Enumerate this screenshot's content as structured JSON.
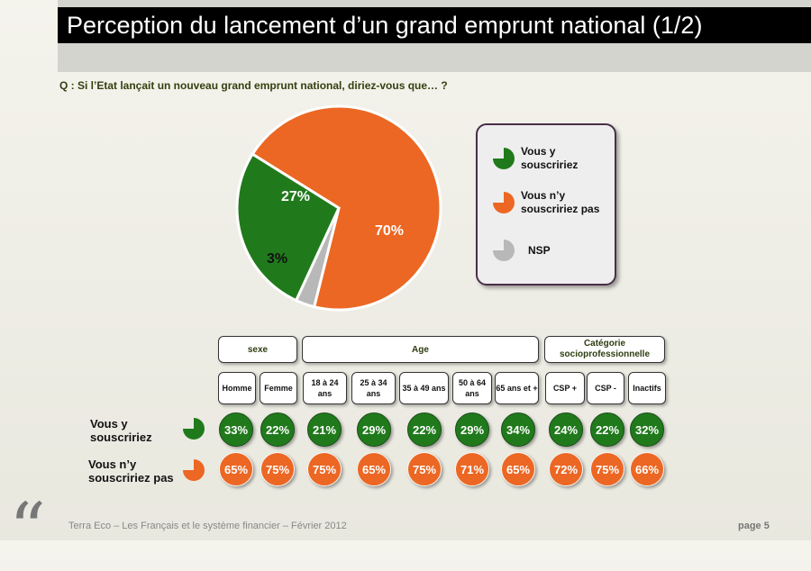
{
  "header": {
    "title": "Perception du lancement d’un grand emprunt national (1/2)",
    "question": "Q : Si l’Etat lançait un nouveau grand emprunt national, diriez-vous que… ?"
  },
  "colors": {
    "yes": "#207a1c",
    "no": "#ec6723",
    "nsp": "#b8b8b8"
  },
  "legend": {
    "items": [
      {
        "label": "Vous y souscririez",
        "icon": "pie-green-icon"
      },
      {
        "label": "Vous n’y souscririez pas",
        "icon": "pie-orange-icon"
      },
      {
        "label": "NSP",
        "icon": "pie-gray-icon"
      }
    ]
  },
  "chart_data": [
    {
      "type": "pie",
      "slices": [
        {
          "name": "Vous n’y souscririez pas",
          "value": 70,
          "label": "70%",
          "color": "#ec6723"
        },
        {
          "name": "NSP",
          "value": 3,
          "label": "3%",
          "color": "#b8b8b8"
        },
        {
          "name": "Vous y souscririez",
          "value": 27,
          "label": "27%",
          "color": "#207a1c"
        }
      ]
    },
    {
      "type": "table",
      "groups": [
        {
          "label": "sexe",
          "columns": [
            "Homme",
            "Femme"
          ]
        },
        {
          "label": "Age",
          "columns": [
            "18 à 24 ans",
            "25 à 34 ans",
            "35 à 49 ans",
            "50 à 64 ans",
            "65 ans et +"
          ]
        },
        {
          "label": "Catégorie socioprofessionnelle",
          "columns": [
            "CSP +",
            "CSP -",
            "Inactifs"
          ]
        }
      ],
      "rows": [
        {
          "label": "Vous y souscririez",
          "values": [
            "33%",
            "22%",
            "21%",
            "29%",
            "22%",
            "29%",
            "34%",
            "24%",
            "22%",
            "32%"
          ]
        },
        {
          "label": "Vous n’y souscririez pas",
          "values": [
            "65%",
            "75%",
            "75%",
            "65%",
            "75%",
            "71%",
            "65%",
            "72%",
            "75%",
            "66%"
          ]
        }
      ]
    }
  ],
  "footer": {
    "source": "Terra Eco – Les Français et le système financier – Février 2012",
    "page": "page 5"
  }
}
